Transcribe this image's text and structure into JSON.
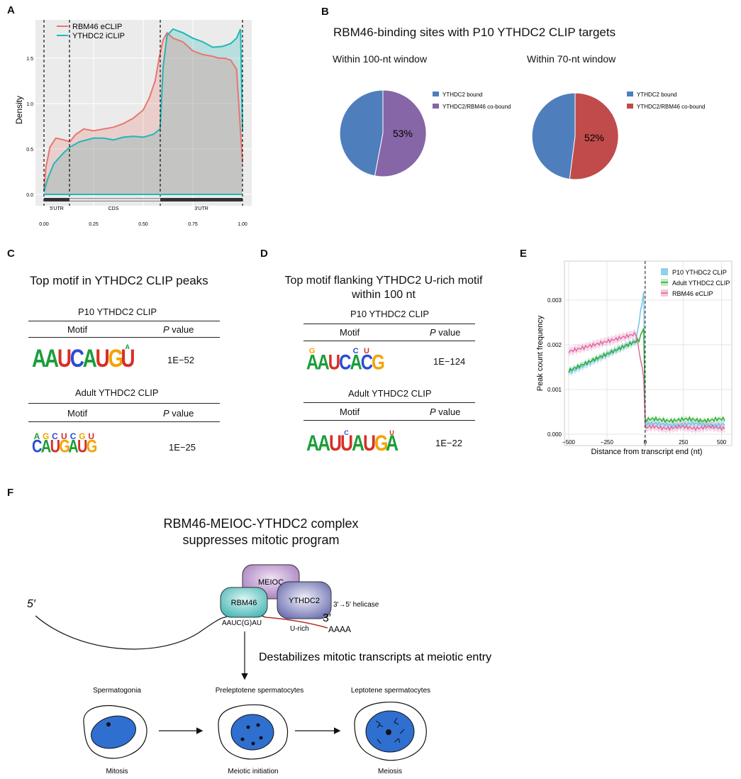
{
  "panels": {
    "A": "A",
    "B": "B",
    "C": "C",
    "D": "D",
    "E": "E",
    "F": "F"
  },
  "panelA": {
    "ylabel": "Density",
    "yticks": [
      "0.0",
      "0.5",
      "1.0",
      "1.5"
    ],
    "xticks": [
      "0.00",
      "0.25",
      "0.50",
      "0.75",
      "1.00"
    ],
    "legend": [
      {
        "name": "RBM46 eCLIP",
        "color": "#e8766f"
      },
      {
        "name": "YTHDC2 iCLIP",
        "color": "#1fb8b8"
      }
    ],
    "regions": [
      "5'UTR",
      "CDS",
      "3'UTR"
    ]
  },
  "panelB": {
    "title": "RBM46-binding sites with P10 YTHDC2 CLIP targets",
    "pies": [
      {
        "subtitle": "Within 100-nt window",
        "label": "53%",
        "legend": [
          "YTHDC2 bound",
          "YTHDC2/RBM46 co-bound"
        ],
        "colors": [
          "#4f7ebd",
          "#8666a6"
        ],
        "cobound_fraction": 0.53
      },
      {
        "subtitle": "Within 70-nt window",
        "label": "52%",
        "legend": [
          "YTHDC2 bound",
          "YTHDC2/RBM46 co-bound"
        ],
        "colors": [
          "#4f7ebd",
          "#c04b4b"
        ],
        "cobound_fraction": 0.52
      }
    ]
  },
  "panelC": {
    "title": "Top motif in YTHDC2 CLIP peaks",
    "sections": [
      {
        "header": "P10 YTHDC2 CLIP",
        "col_motif": "Motif",
        "col_p_italic": "P",
        "col_p_rest": " value",
        "pvalue": "1E−52",
        "logo": [
          "A",
          "A",
          "U",
          "C",
          "A",
          "U",
          "G",
          "U"
        ],
        "sub": [
          "",
          "",
          "",
          "",
          "",
          "",
          "",
          "A"
        ]
      },
      {
        "header": "Adult YTHDC2 CLIP",
        "col_motif": "Motif",
        "col_p_italic": "P",
        "col_p_rest": " value",
        "pvalue": "1E−25",
        "logo": [
          "C",
          "A",
          "U",
          "G",
          "A",
          "U",
          "G"
        ],
        "sub": [
          "A",
          "G",
          "C",
          "U",
          "C",
          "G",
          "U"
        ]
      }
    ]
  },
  "panelD": {
    "title1": "Top motif flanking YTHDC2 U-rich motif",
    "title2": "within 100 nt",
    "sections": [
      {
        "header": "P10 YTHDC2 CLIP",
        "col_motif": "Motif",
        "col_p_italic": "P",
        "col_p_rest": " value",
        "pvalue": "1E−124",
        "logo": [
          "A",
          "A",
          "U",
          "C",
          "A",
          "C",
          "G"
        ],
        "sub": [
          "G",
          "",
          "",
          "",
          "C",
          "U",
          ""
        ]
      },
      {
        "header": "Adult YTHDC2 CLIP",
        "col_motif": "Motif",
        "col_p_italic": "P",
        "col_p_rest": " value",
        "pvalue": "1E−22",
        "logo": [
          "A",
          "A",
          "U",
          "U",
          "A",
          "U",
          "G",
          "A"
        ],
        "sub": [
          "",
          "",
          "",
          "C",
          "",
          "",
          "",
          "U"
        ]
      }
    ]
  },
  "panelE": {
    "ylabel": "Peak count frequency",
    "xlabel": "Distance from transcript end (nt)",
    "yticks": [
      "0.000",
      "0.001",
      "0.002",
      "0.003"
    ],
    "xticks": [
      "−500",
      "−250",
      "0",
      "250",
      "500"
    ],
    "legend": [
      {
        "name": "P10 YTHDC2 CLIP",
        "color": "#8fd0ec"
      },
      {
        "name": "Adult YTHDC2 CLIP",
        "color": "#22aa22"
      },
      {
        "name": "RBM46 eCLIP",
        "color": "#d9639d"
      }
    ]
  },
  "panelF": {
    "title1": "RBM46-MEIOC-YTHDC2 complex",
    "title2": "suppresses mitotic program",
    "five_prime": "5′",
    "three_prime": "3′",
    "meioc": "MEIOC",
    "rbm46": "RBM46",
    "ythdc2": "YTHDC2",
    "helicase": "3′→5′ helicase",
    "motif": "AAUC(G)AU",
    "urich": "U-rich",
    "polyA": "AAAA",
    "destabilize": "Destabilizes mitotic transcripts at meiotic entry",
    "stages_top": [
      "Spermatogonia",
      "Preleptotene spermatocytes",
      "Leptotene spermatocytes"
    ],
    "stages_bottom": [
      "Mitosis",
      "Meiotic initiation",
      "Meiosis"
    ]
  }
}
